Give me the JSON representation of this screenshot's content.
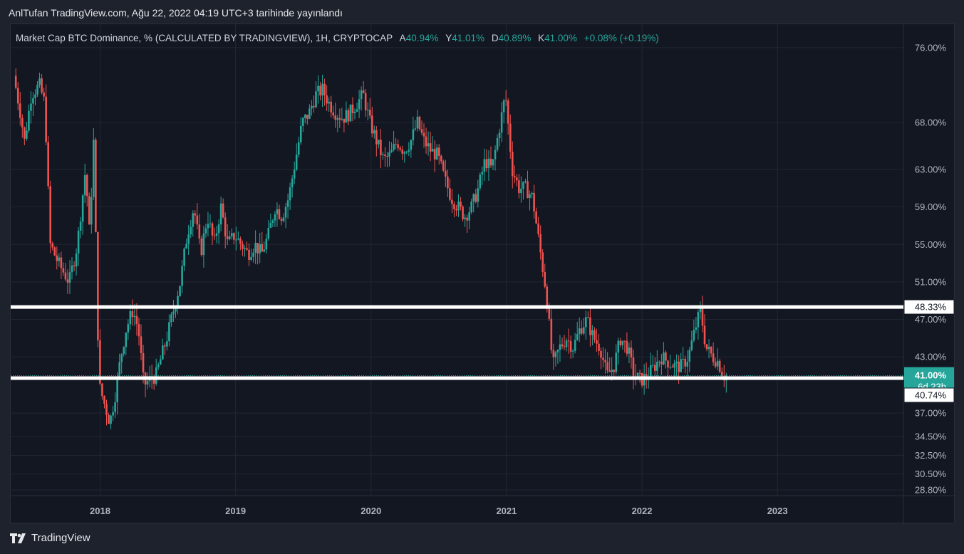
{
  "header": {
    "published": "AnlTufan TradingView.com, Ağu 22, 2022 04:19 UTC+3 tarihinde yayınlandı"
  },
  "legend": {
    "symbol": "Market Cap BTC Dominance, % (CALCULATED BY TRADINGVIEW), 1H, CRYPTOCAP",
    "a_label": "A",
    "a_value": "40.94%",
    "y_label": "Y",
    "y_value": "41.01%",
    "d_label": "D",
    "d_value": "40.89%",
    "k_label": "K",
    "k_value": "41.00%",
    "change": "+0.08% (+0.19%)"
  },
  "footer": {
    "brand": "TradingView",
    "icon": "tradingview-logo-icon"
  },
  "colors": {
    "up": "#26a69a",
    "down": "#ef5350",
    "bg": "#131722",
    "grid": "#232733",
    "axis_text": "#b2b5be"
  },
  "chart_data": {
    "type": "candlestick",
    "xlabel": "",
    "ylabel": "",
    "x_range": [
      2017.34,
      2023.93
    ],
    "y_range": [
      28.2,
      78.5
    ],
    "x_ticks": [
      {
        "value": 2018,
        "label": "2018"
      },
      {
        "value": 2019,
        "label": "2019"
      },
      {
        "value": 2020,
        "label": "2020"
      },
      {
        "value": 2021,
        "label": "2021"
      },
      {
        "value": 2022,
        "label": "2022"
      },
      {
        "value": 2023,
        "label": "2023"
      }
    ],
    "y_ticks": [
      {
        "value": 76,
        "label": "76.00%"
      },
      {
        "value": 68,
        "label": "68.00%"
      },
      {
        "value": 63,
        "label": "63.00%"
      },
      {
        "value": 59,
        "label": "59.00%"
      },
      {
        "value": 55,
        "label": "55.00%"
      },
      {
        "value": 51,
        "label": "51.00%"
      },
      {
        "value": 47,
        "label": "47.00%"
      },
      {
        "value": 43,
        "label": "43.00%"
      },
      {
        "value": 37,
        "label": "37.00%"
      },
      {
        "value": 34.5,
        "label": "34.50%"
      },
      {
        "value": 32.5,
        "label": "32.50%"
      },
      {
        "value": 30.5,
        "label": "30.50%"
      },
      {
        "value": 28.8,
        "label": "28.80%"
      }
    ],
    "horizontal_lines": [
      48.33,
      40.74
    ],
    "price_labels": [
      {
        "value": 48.33,
        "label": "48.33%",
        "style": "white"
      },
      {
        "value": 41.0,
        "label": "41.00%",
        "sub": "6d 23h",
        "style": "teal"
      },
      {
        "value": 40.74,
        "label": "40.74%",
        "style": "white"
      }
    ],
    "last_value": 41.0,
    "series_path": [
      [
        2017.37,
        73
      ],
      [
        2017.42,
        69
      ],
      [
        2017.45,
        66
      ],
      [
        2017.5,
        71
      ],
      [
        2017.56,
        72
      ],
      [
        2017.6,
        70
      ],
      [
        2017.64,
        55
      ],
      [
        2017.7,
        53
      ],
      [
        2017.78,
        51
      ],
      [
        2017.84,
        55
      ],
      [
        2017.9,
        63
      ],
      [
        2017.93,
        56
      ],
      [
        2017.96,
        66
      ],
      [
        2018.0,
        40
      ],
      [
        2018.04,
        38
      ],
      [
        2018.08,
        36
      ],
      [
        2018.12,
        39
      ],
      [
        2018.16,
        43
      ],
      [
        2018.2,
        46
      ],
      [
        2018.25,
        48
      ],
      [
        2018.29,
        46
      ],
      [
        2018.33,
        40
      ],
      [
        2018.37,
        40.5
      ],
      [
        2018.42,
        41
      ],
      [
        2018.46,
        43
      ],
      [
        2018.5,
        45
      ],
      [
        2018.55,
        48
      ],
      [
        2018.6,
        51
      ],
      [
        2018.65,
        56
      ],
      [
        2018.7,
        59
      ],
      [
        2018.75,
        54
      ],
      [
        2018.8,
        58
      ],
      [
        2018.85,
        55
      ],
      [
        2018.9,
        59
      ],
      [
        2018.95,
        55
      ],
      [
        2019.0,
        56
      ],
      [
        2019.05,
        55
      ],
      [
        2019.1,
        54
      ],
      [
        2019.15,
        55
      ],
      [
        2019.2,
        54
      ],
      [
        2019.25,
        56
      ],
      [
        2019.3,
        59
      ],
      [
        2019.35,
        58
      ],
      [
        2019.4,
        60
      ],
      [
        2019.45,
        64
      ],
      [
        2019.5,
        68
      ],
      [
        2019.55,
        69
      ],
      [
        2019.6,
        71
      ],
      [
        2019.65,
        71.5
      ],
      [
        2019.7,
        70
      ],
      [
        2019.75,
        69
      ],
      [
        2019.8,
        68.5
      ],
      [
        2019.85,
        69
      ],
      [
        2019.9,
        70
      ],
      [
        2019.95,
        71
      ],
      [
        2020.0,
        68
      ],
      [
        2020.05,
        66
      ],
      [
        2020.1,
        64
      ],
      [
        2020.15,
        64.5
      ],
      [
        2020.2,
        66
      ],
      [
        2020.25,
        65
      ],
      [
        2020.3,
        66
      ],
      [
        2020.35,
        68
      ],
      [
        2020.4,
        66
      ],
      [
        2020.45,
        65
      ],
      [
        2020.5,
        64.5
      ],
      [
        2020.55,
        62
      ],
      [
        2020.6,
        60
      ],
      [
        2020.65,
        59
      ],
      [
        2020.7,
        58
      ],
      [
        2020.75,
        59
      ],
      [
        2020.8,
        61
      ],
      [
        2020.85,
        64
      ],
      [
        2020.9,
        63
      ],
      [
        2020.95,
        67
      ],
      [
        2021.0,
        71
      ],
      [
        2021.05,
        63
      ],
      [
        2021.1,
        61
      ],
      [
        2021.15,
        61
      ],
      [
        2021.2,
        60
      ],
      [
        2021.25,
        55
      ],
      [
        2021.3,
        50
      ],
      [
        2021.35,
        42
      ],
      [
        2021.4,
        44
      ],
      [
        2021.45,
        45
      ],
      [
        2021.5,
        44
      ],
      [
        2021.55,
        46
      ],
      [
        2021.6,
        47
      ],
      [
        2021.65,
        45
      ],
      [
        2021.7,
        44
      ],
      [
        2021.75,
        41
      ],
      [
        2021.8,
        42
      ],
      [
        2021.85,
        45
      ],
      [
        2021.9,
        44
      ],
      [
        2021.95,
        41
      ],
      [
        2022.0,
        40.5
      ],
      [
        2022.05,
        41
      ],
      [
        2022.1,
        42
      ],
      [
        2022.15,
        43
      ],
      [
        2022.2,
        42.5
      ],
      [
        2022.25,
        42
      ],
      [
        2022.3,
        42
      ],
      [
        2022.35,
        43
      ],
      [
        2022.4,
        46
      ],
      [
        2022.44,
        48
      ],
      [
        2022.48,
        44
      ],
      [
        2022.53,
        43
      ],
      [
        2022.57,
        42.5
      ],
      [
        2022.61,
        41
      ],
      [
        2022.63,
        41.0
      ]
    ]
  }
}
